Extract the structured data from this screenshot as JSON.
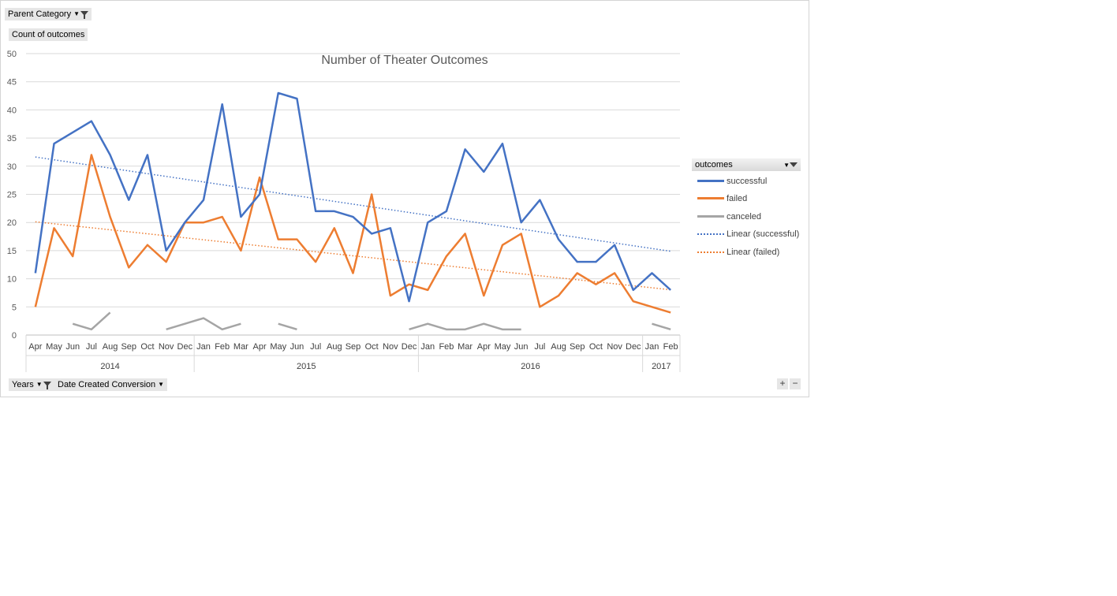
{
  "filters": {
    "parent_category": "Parent Category",
    "value_field": "Count of outcomes",
    "years": "Years",
    "date_field": "Date Created Conversion",
    "legend_field": "outcomes"
  },
  "colors": {
    "successful": "#4472c4",
    "failed": "#ed7d31",
    "canceled": "#a5a5a5"
  },
  "chart_data": {
    "type": "line",
    "title": "Number of Theater Outcomes",
    "ylim": [
      0,
      50
    ],
    "y_ticks": [
      "0",
      "5",
      "10",
      "15",
      "20",
      "25",
      "30",
      "35",
      "40",
      "45",
      "50"
    ],
    "categories": [
      "Apr",
      "May",
      "Jun",
      "Jul",
      "Aug",
      "Sep",
      "Oct",
      "Nov",
      "Dec",
      "Jan",
      "Feb",
      "Mar",
      "Apr",
      "May",
      "Jun",
      "Jul",
      "Aug",
      "Sep",
      "Oct",
      "Nov",
      "Dec",
      "Jan",
      "Feb",
      "Mar",
      "Apr",
      "May",
      "Jun",
      "Jul",
      "Aug",
      "Sep",
      "Oct",
      "Nov",
      "Dec",
      "Jan",
      "Feb"
    ],
    "year_groups": [
      {
        "label": "2014",
        "count": 9
      },
      {
        "label": "2015",
        "count": 12
      },
      {
        "label": "2016",
        "count": 12
      },
      {
        "label": "2017",
        "count": 2
      }
    ],
    "grid": true,
    "legend_position": "right",
    "series": [
      {
        "name": "successful",
        "values": [
          11,
          34,
          36,
          38,
          32,
          24,
          32,
          15,
          20,
          24,
          41,
          21,
          25,
          43,
          42,
          22,
          22,
          21,
          18,
          19,
          6,
          20,
          22,
          33,
          29,
          34,
          20,
          24,
          17,
          13,
          13,
          16,
          8,
          11,
          8
        ]
      },
      {
        "name": "failed",
        "values": [
          5,
          19,
          14,
          32,
          21,
          12,
          16,
          13,
          20,
          20,
          21,
          15,
          28,
          17,
          17,
          13,
          19,
          11,
          25,
          7,
          9,
          8,
          14,
          18,
          7,
          16,
          18,
          5,
          7,
          11,
          9,
          11,
          6,
          5,
          4
        ]
      },
      {
        "name": "canceled",
        "values": [
          null,
          null,
          2,
          1,
          4,
          null,
          null,
          1,
          2,
          3,
          1,
          2,
          null,
          2,
          1,
          null,
          null,
          null,
          null,
          null,
          1,
          2,
          1,
          1,
          2,
          1,
          1,
          null,
          null,
          null,
          null,
          null,
          null,
          2,
          1
        ]
      }
    ],
    "trendlines": [
      {
        "name": "Linear (successful)",
        "series": "successful"
      },
      {
        "name": "Linear (failed)",
        "series": "failed"
      }
    ]
  }
}
